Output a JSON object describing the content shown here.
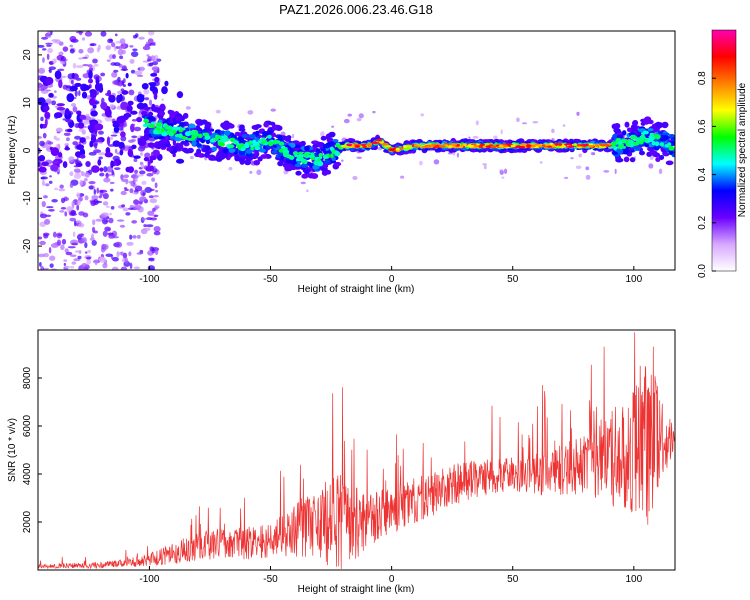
{
  "title": "PAZ1.2026.006.23.46.G18",
  "colorbar": {
    "label": "Normalized spectral amplitude",
    "ticks": [
      "0.0",
      "0.2",
      "0.4",
      "0.6",
      "0.8"
    ],
    "tick_values": [
      0.0,
      0.2,
      0.4,
      0.6,
      0.8
    ],
    "range": [
      0,
      1
    ],
    "colors": [
      "#ffffff",
      "#d8a8ff",
      "#6a00ff",
      "#0000ff",
      "#00ffff",
      "#00ff00",
      "#ffff00",
      "#ff8000",
      "#ff0000",
      "#ff00b0"
    ]
  },
  "chart_data": [
    {
      "type": "heatmap",
      "name": "spectrogram",
      "xlabel": "Height of straight line (km)",
      "ylabel": "Frequency (Hz)",
      "xlim": [
        -146,
        117
      ],
      "ylim": [
        -25,
        25
      ],
      "xticks": [
        -100,
        -50,
        0,
        50,
        100
      ],
      "xtick_labels": [
        "-100",
        "-50",
        "0",
        "50",
        "100"
      ],
      "yticks": [
        -20,
        -10,
        0,
        10,
        20
      ],
      "ytick_labels": [
        "-20",
        "-10",
        "0",
        "10",
        "20"
      ],
      "ridge": {
        "x": [
          -146,
          -130,
          -120,
          -110,
          -100,
          -90,
          -80,
          -70,
          -60,
          -50,
          -40,
          -30,
          -20,
          -10,
          -5,
          0,
          10,
          20,
          30,
          40,
          50,
          60,
          70,
          80,
          90,
          100,
          105,
          110,
          117
        ],
        "freq": [
          6,
          7,
          8,
          8,
          5,
          4,
          3,
          2,
          1,
          2,
          -1,
          -2,
          1,
          1,
          2,
          0,
          1,
          1,
          1,
          1,
          1,
          1,
          1,
          1,
          1,
          2,
          3,
          2,
          1
        ]
      }
    },
    {
      "type": "line",
      "name": "snr",
      "xlabel": "Height of straight line (km)",
      "ylabel": "SNR (10 * v/v)",
      "xlim": [
        -146,
        117
      ],
      "ylim": [
        0,
        10000
      ],
      "xticks": [
        -100,
        -50,
        0,
        50,
        100
      ],
      "xtick_labels": [
        "-100",
        "-50",
        "0",
        "50",
        "100"
      ],
      "yticks": [
        2000,
        4000,
        6000,
        8000
      ],
      "ytick_labels": [
        "2000",
        "4000",
        "6000",
        "8000"
      ],
      "color": "#ee3333",
      "trend": {
        "x": [
          -146,
          -120,
          -110,
          -100,
          -90,
          -80,
          -70,
          -60,
          -50,
          -40,
          -30,
          -20,
          -10,
          0,
          10,
          20,
          30,
          40,
          50,
          60,
          70,
          80,
          90,
          100,
          105,
          110,
          117
        ],
        "y": [
          150,
          200,
          300,
          400,
          700,
          1000,
          1100,
          1100,
          1200,
          1600,
          2000,
          1900,
          2000,
          2500,
          2900,
          3300,
          3700,
          3900,
          4000,
          4000,
          4200,
          4400,
          4600,
          5000,
          5200,
          5300,
          5400
        ]
      },
      "spread": {
        "x": [
          -146,
          -110,
          -100,
          -80,
          -60,
          -50,
          -40,
          -30,
          -25,
          -20,
          -10,
          0,
          20,
          50,
          80,
          90,
          100,
          105,
          110,
          117
        ],
        "y": [
          80,
          150,
          300,
          600,
          700,
          700,
          1200,
          1500,
          2300,
          2000,
          1100,
          1000,
          900,
          700,
          1300,
          2000,
          2800,
          3500,
          2600,
          300
        ]
      }
    }
  ]
}
